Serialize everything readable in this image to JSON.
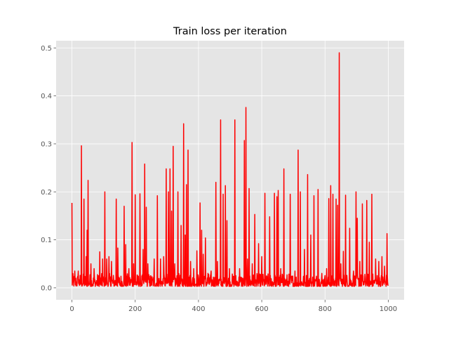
{
  "chart_data": {
    "type": "line",
    "title": "Train loss per iteration",
    "xlabel": "",
    "ylabel": "",
    "xlim": [
      -50,
      1050
    ],
    "ylim": [
      -0.025,
      0.515
    ],
    "x_ticks": [
      0,
      200,
      400,
      600,
      800,
      1000
    ],
    "x_tick_labels": [
      "0",
      "200",
      "400",
      "600",
      "800",
      "1000"
    ],
    "y_ticks": [
      0.0,
      0.1,
      0.2,
      0.3,
      0.4,
      0.5
    ],
    "y_tick_labels": [
      "0.0",
      "0.1",
      "0.2",
      "0.3",
      "0.4",
      "0.5"
    ],
    "grid": true,
    "style": "ggplot",
    "background_color": "#e5e5e5",
    "grid_color": "#ffffff",
    "series": [
      {
        "color": "#ff0000",
        "n_points": 1000,
        "baseline_range": [
          0.003,
          0.03
        ],
        "peaks": [
          [
            0,
            0.177
          ],
          [
            9,
            0.035
          ],
          [
            20,
            0.035
          ],
          [
            30,
            0.296
          ],
          [
            38,
            0.185
          ],
          [
            45,
            0.065
          ],
          [
            48,
            0.12
          ],
          [
            51,
            0.224
          ],
          [
            60,
            0.05
          ],
          [
            70,
            0.04
          ],
          [
            88,
            0.075
          ],
          [
            97,
            0.06
          ],
          [
            104,
            0.2
          ],
          [
            110,
            0.06
          ],
          [
            117,
            0.065
          ],
          [
            125,
            0.055
          ],
          [
            140,
            0.185
          ],
          [
            145,
            0.083
          ],
          [
            165,
            0.17
          ],
          [
            170,
            0.09
          ],
          [
            180,
            0.04
          ],
          [
            190,
            0.303
          ],
          [
            195,
            0.05
          ],
          [
            200,
            0.194
          ],
          [
            215,
            0.196
          ],
          [
            225,
            0.08
          ],
          [
            230,
            0.258
          ],
          [
            235,
            0.168
          ],
          [
            240,
            0.05
          ],
          [
            260,
            0.06
          ],
          [
            270,
            0.192
          ],
          [
            280,
            0.06
          ],
          [
            290,
            0.065
          ],
          [
            298,
            0.248
          ],
          [
            305,
            0.2
          ],
          [
            310,
            0.248
          ],
          [
            315,
            0.16
          ],
          [
            320,
            0.295
          ],
          [
            325,
            0.05
          ],
          [
            335,
            0.2
          ],
          [
            345,
            0.13
          ],
          [
            353,
            0.342
          ],
          [
            358,
            0.11
          ],
          [
            362,
            0.215
          ],
          [
            367,
            0.287
          ],
          [
            375,
            0.055
          ],
          [
            385,
            0.04
          ],
          [
            395,
            0.077
          ],
          [
            405,
            0.177
          ],
          [
            410,
            0.12
          ],
          [
            415,
            0.07
          ],
          [
            422,
            0.104
          ],
          [
            430,
            0.03
          ],
          [
            440,
            0.035
          ],
          [
            455,
            0.22
          ],
          [
            460,
            0.055
          ],
          [
            470,
            0.35
          ],
          [
            478,
            0.195
          ],
          [
            485,
            0.213
          ],
          [
            490,
            0.14
          ],
          [
            498,
            0.04
          ],
          [
            515,
            0.35
          ],
          [
            530,
            0.04
          ],
          [
            545,
            0.307
          ],
          [
            550,
            0.376
          ],
          [
            555,
            0.06
          ],
          [
            560,
            0.207
          ],
          [
            570,
            0.05
          ],
          [
            578,
            0.153
          ],
          [
            590,
            0.092
          ],
          [
            600,
            0.065
          ],
          [
            610,
            0.197
          ],
          [
            625,
            0.148
          ],
          [
            640,
            0.197
          ],
          [
            648,
            0.19
          ],
          [
            652,
            0.203
          ],
          [
            660,
            0.04
          ],
          [
            670,
            0.248
          ],
          [
            690,
            0.195
          ],
          [
            705,
            0.035
          ],
          [
            715,
            0.287
          ],
          [
            722,
            0.2
          ],
          [
            735,
            0.08
          ],
          [
            745,
            0.236
          ],
          [
            755,
            0.11
          ],
          [
            765,
            0.192
          ],
          [
            778,
            0.205
          ],
          [
            790,
            0.03
          ],
          [
            805,
            0.04
          ],
          [
            812,
            0.186
          ],
          [
            818,
            0.213
          ],
          [
            825,
            0.195
          ],
          [
            835,
            0.185
          ],
          [
            840,
            0.172
          ],
          [
            845,
            0.49
          ],
          [
            850,
            0.05
          ],
          [
            858,
            0.076
          ],
          [
            865,
            0.193
          ],
          [
            878,
            0.124
          ],
          [
            890,
            0.035
          ],
          [
            898,
            0.2
          ],
          [
            902,
            0.145
          ],
          [
            910,
            0.055
          ],
          [
            918,
            0.175
          ],
          [
            932,
            0.182
          ],
          [
            940,
            0.095
          ],
          [
            948,
            0.195
          ],
          [
            960,
            0.06
          ],
          [
            970,
            0.055
          ],
          [
            980,
            0.065
          ],
          [
            988,
            0.045
          ],
          [
            996,
            0.113
          ]
        ]
      }
    ]
  }
}
